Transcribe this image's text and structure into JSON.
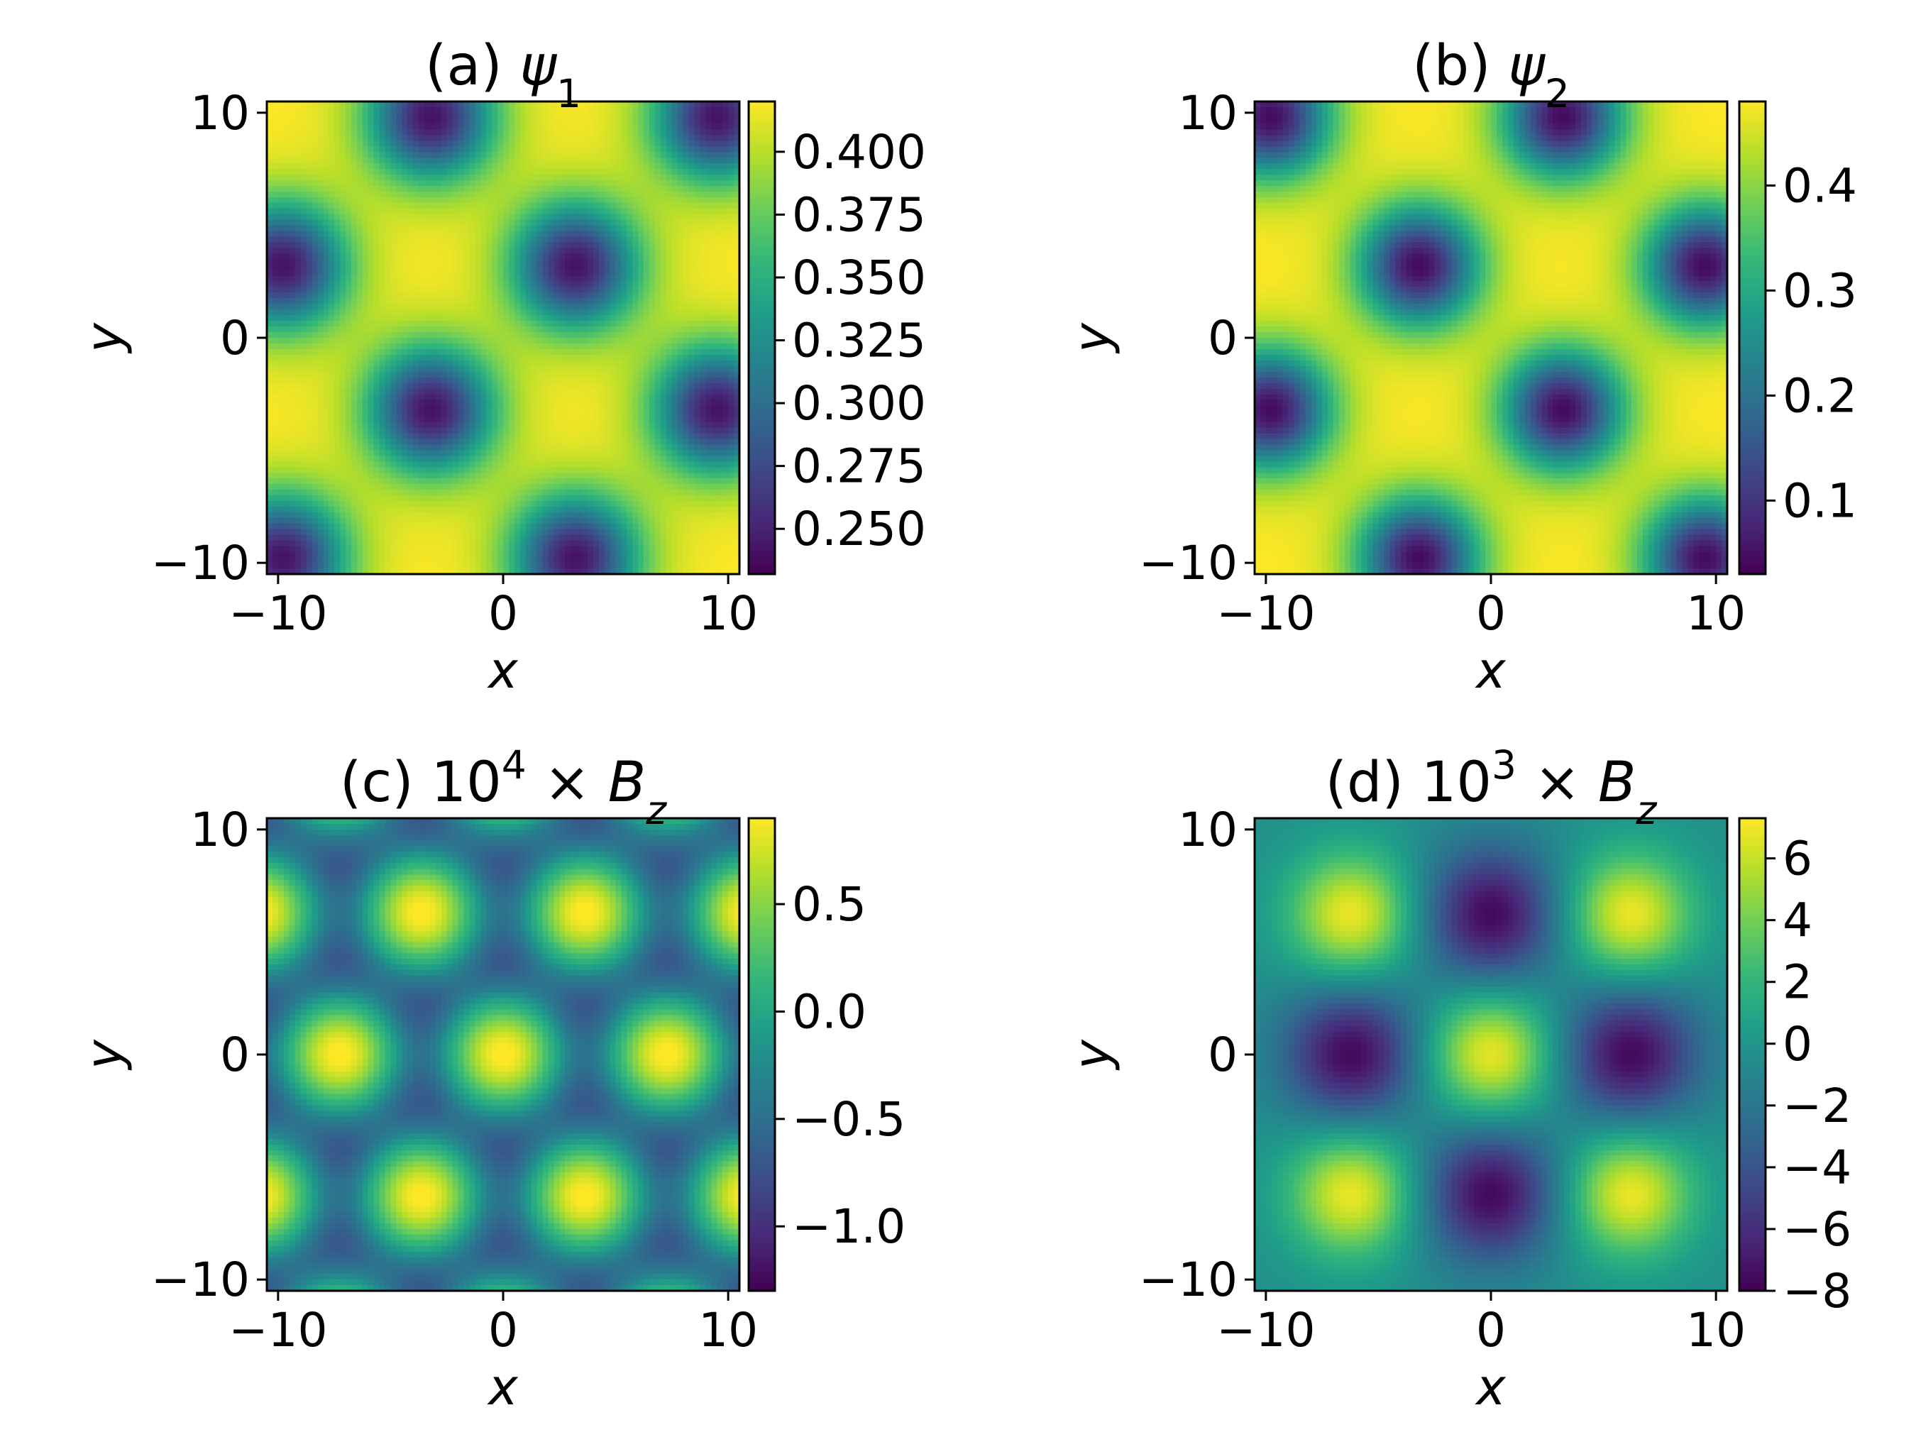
{
  "colormap": [
    "#440154",
    "#482878",
    "#3e4989",
    "#31688e",
    "#26828e",
    "#1f9e89",
    "#35b779",
    "#6ece58",
    "#b5de2b",
    "#fde725"
  ],
  "chart_data": [
    {
      "id": "a",
      "type": "heatmap",
      "title_prefix": "(a) ",
      "title_math": "ψ",
      "title_sub": "1",
      "xlabel": "x",
      "ylabel": "y",
      "xlim": [
        -10.5,
        10.5
      ],
      "ylim": [
        -10.5,
        10.5
      ],
      "xticks": [
        -10,
        0,
        10
      ],
      "yticks": [
        -10,
        0,
        10
      ],
      "xtick_labels": [
        "−10",
        "0",
        "10"
      ],
      "ytick_labels": [
        "−10",
        "0",
        "10"
      ],
      "colorbar_range": [
        0.232,
        0.42
      ],
      "colorbar_ticks": [
        0.25,
        0.275,
        0.3,
        0.325,
        0.35,
        0.375,
        0.4
      ],
      "colorbar_labels": [
        "0.250",
        "0.275",
        "0.300",
        "0.325",
        "0.350",
        "0.375",
        "0.400"
      ],
      "minima": [
        [
          -3.2,
          9.8
        ],
        [
          9.5,
          9.8
        ],
        [
          -9.8,
          3.2
        ],
        [
          3.2,
          3.2
        ],
        [
          -3.2,
          -3.2
        ],
        [
          9.5,
          -3.2
        ],
        [
          -9.8,
          -9.8
        ],
        [
          3.2,
          -9.8
        ]
      ]
    },
    {
      "id": "b",
      "type": "heatmap",
      "title_prefix": "(b) ",
      "title_math": "ψ",
      "title_sub": "2",
      "xlabel": "x",
      "ylabel": "y",
      "xlim": [
        -10.5,
        10.5
      ],
      "ylim": [
        -10.5,
        10.5
      ],
      "xticks": [
        -10,
        0,
        10
      ],
      "yticks": [
        -10,
        0,
        10
      ],
      "xtick_labels": [
        "−10",
        "0",
        "10"
      ],
      "ytick_labels": [
        "−10",
        "0",
        "10"
      ],
      "colorbar_range": [
        0.03,
        0.48
      ],
      "colorbar_ticks": [
        0.1,
        0.2,
        0.3,
        0.4
      ],
      "colorbar_labels": [
        "0.1",
        "0.2",
        "0.3",
        "0.4"
      ],
      "minima": [
        [
          -9.8,
          9.8
        ],
        [
          3.2,
          9.8
        ],
        [
          -3.2,
          3.2
        ],
        [
          9.5,
          3.2
        ],
        [
          -9.8,
          -3.2
        ],
        [
          3.2,
          -3.2
        ],
        [
          -3.2,
          -9.8
        ],
        [
          9.5,
          -9.8
        ]
      ]
    },
    {
      "id": "c",
      "type": "heatmap",
      "title_prefix": "(c) ",
      "title_math_html": "10<tspan baseline-shift=\"super\" font-size=\"55\">4</tspan> × <tspan font-style=\"italic\">B</tspan><tspan baseline-shift=\"sub\" font-size=\"55\" font-style=\"italic\">z</tspan>",
      "title_text": "10⁴ × Bz",
      "xlabel": "x",
      "ylabel": "y",
      "xlim": [
        -10.5,
        10.5
      ],
      "ylim": [
        -10.5,
        10.5
      ],
      "xticks": [
        -10,
        0,
        10
      ],
      "yticks": [
        -10,
        0,
        10
      ],
      "xtick_labels": [
        "−10",
        "0",
        "10"
      ],
      "ytick_labels": [
        "−10",
        "0",
        "10"
      ],
      "colorbar_range": [
        -1.3,
        0.9
      ],
      "colorbar_ticks": [
        -1.0,
        -0.5,
        0.0,
        0.5
      ],
      "colorbar_labels": [
        "−1.0",
        "−0.5",
        "0.0",
        "0.5"
      ]
    },
    {
      "id": "d",
      "type": "heatmap",
      "title_prefix": "(d) ",
      "title_text": "10³ × Bz",
      "xlabel": "x",
      "ylabel": "y",
      "xlim": [
        -10.5,
        10.5
      ],
      "ylim": [
        -10.5,
        10.5
      ],
      "xticks": [
        -10,
        0,
        10
      ],
      "yticks": [
        -10,
        0,
        10
      ],
      "xtick_labels": [
        "−10",
        "0",
        "10"
      ],
      "ytick_labels": [
        "−10",
        "0",
        "10"
      ],
      "colorbar_range": [
        -8,
        7.3
      ],
      "colorbar_ticks": [
        -8,
        -6,
        -4,
        -2,
        0,
        2,
        4,
        6
      ],
      "colorbar_labels": [
        "−8",
        "−6",
        "−4",
        "−2",
        "0",
        "2",
        "4",
        "6"
      ],
      "maxima": [
        [
          -6.2,
          6.2
        ],
        [
          6.2,
          6.2
        ],
        [
          0,
          0
        ],
        [
          -6.2,
          -6.2
        ],
        [
          6.2,
          -6.2
        ]
      ],
      "minima": [
        [
          0,
          6.2
        ],
        [
          -6.2,
          0
        ],
        [
          6.2,
          0
        ],
        [
          0,
          -6.2
        ]
      ]
    }
  ]
}
